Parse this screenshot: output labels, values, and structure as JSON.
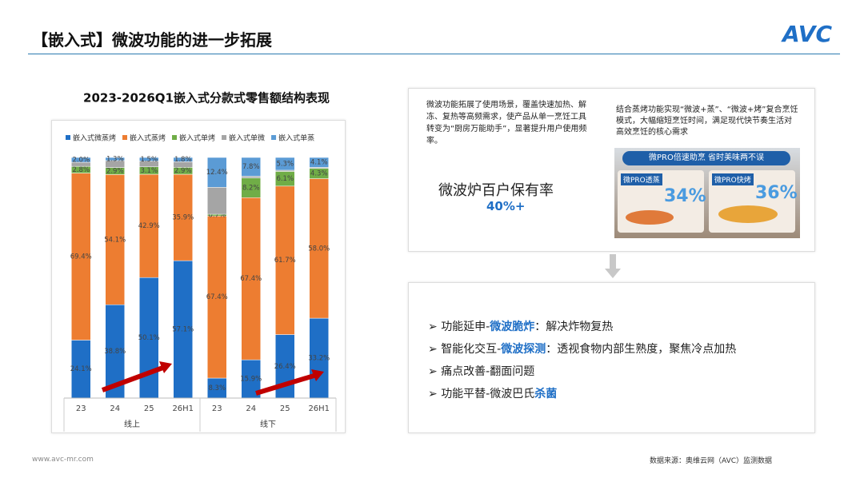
{
  "header": {
    "title": "【嵌入式】微波功能的进一步拓展",
    "logo": "AVC"
  },
  "chart_data": {
    "type": "bar",
    "stacked": true,
    "title": "2023-2026Q1嵌入式分款式零售额结构表现",
    "categories": [
      "23",
      "24",
      "25",
      "26H1",
      "23",
      "24",
      "25",
      "26H1"
    ],
    "groups": [
      "线上",
      "线下"
    ],
    "ylim": [
      0,
      100
    ],
    "series": [
      {
        "name": "嵌入式微蒸烤",
        "color": "#1f6fc6",
        "values": [
          24.1,
          38.8,
          50.1,
          57.1,
          8.3,
          15.9,
          26.4,
          33.2
        ],
        "value_labels": [
          "24.1%",
          "38.8%",
          "50.1%",
          "57.1%",
          "8.3%",
          "15.9%",
          "26.4%",
          "33.2%"
        ]
      },
      {
        "name": "嵌入式蒸烤",
        "color": "#ed7d31",
        "values": [
          69.4,
          54.1,
          42.9,
          35.9,
          67.4,
          67.4,
          61.7,
          58.0
        ],
        "value_labels": [
          "69.4%",
          "54.1%",
          "42.9%",
          "35.9%",
          "67.4%",
          "67.4%",
          "61.7%",
          "58.0%"
        ]
      },
      {
        "name": "嵌入式单烤",
        "color": "#70ad47",
        "values": [
          2.8,
          2.9,
          3.1,
          2.9,
          0.7,
          8.2,
          6.1,
          4.3
        ],
        "value_labels": [
          "2.8%",
          "2.9%",
          "3.1%",
          "2.9%",
          "0.7%",
          "8.2%",
          "6.1%",
          "4.3%"
        ]
      },
      {
        "name": "嵌入式单微",
        "color": "#a5a5a5",
        "values": [
          1.7,
          2.9,
          2.4,
          2.3,
          11.2,
          0.7,
          0.5,
          0.4
        ]
      },
      {
        "name": "嵌入式单蒸",
        "color": "#5b9bd5",
        "values": [
          2.0,
          1.3,
          1.5,
          1.8,
          12.4,
          7.8,
          5.3,
          4.1
        ],
        "value_labels": [
          "2.0%",
          "1.3%",
          "1.5%",
          "1.8%",
          "12.4%",
          "7.8%",
          "5.3%",
          "4.1%"
        ]
      }
    ]
  },
  "panel_top": {
    "left_text": "微波功能拓展了使用场景，覆盖快速加热、解冻、复热等高频需求，使产品从单一烹饪工具转变为“厨房万能助手”，显著提升用户使用频率。",
    "metric_label": "微波炉百户保有率",
    "metric_value": "40%+",
    "right_text": "结合蒸烤功能实现“微波+蒸”、“微波+烤”复合烹饪模式，大幅缩短烹饪时间，满足现代快节奏生活对高效烹饪的核心需求",
    "image": {
      "banner": "微PRO倍速助烹 省时美味两不误",
      "left_tag": "微PRO透蒸",
      "left_pct": "34%",
      "right_tag": "微PRO快烤",
      "right_pct": "36%"
    }
  },
  "panel_bottom": {
    "bullets": [
      [
        {
          "text": "功能延申-"
        },
        {
          "text": "微波脆炸",
          "color": "#1f6fc6"
        },
        {
          "text": "：解决炸物复热"
        }
      ],
      [
        {
          "text": "智能化交互-"
        },
        {
          "text": "微波探测",
          "color": "#1f6fc6"
        },
        {
          "text": "：透视食物内部生熟度，聚焦冷点加热"
        }
      ],
      [
        {
          "text": "痛点改善-翻面问题"
        }
      ],
      [
        {
          "text": "功能平替-微波巴氏"
        },
        {
          "text": "杀菌",
          "color": "#1f6fc6"
        }
      ]
    ]
  },
  "footer": {
    "site": "www.avc-mr.com",
    "source": "数据来源：奥维云网（AVC）监测数据"
  }
}
